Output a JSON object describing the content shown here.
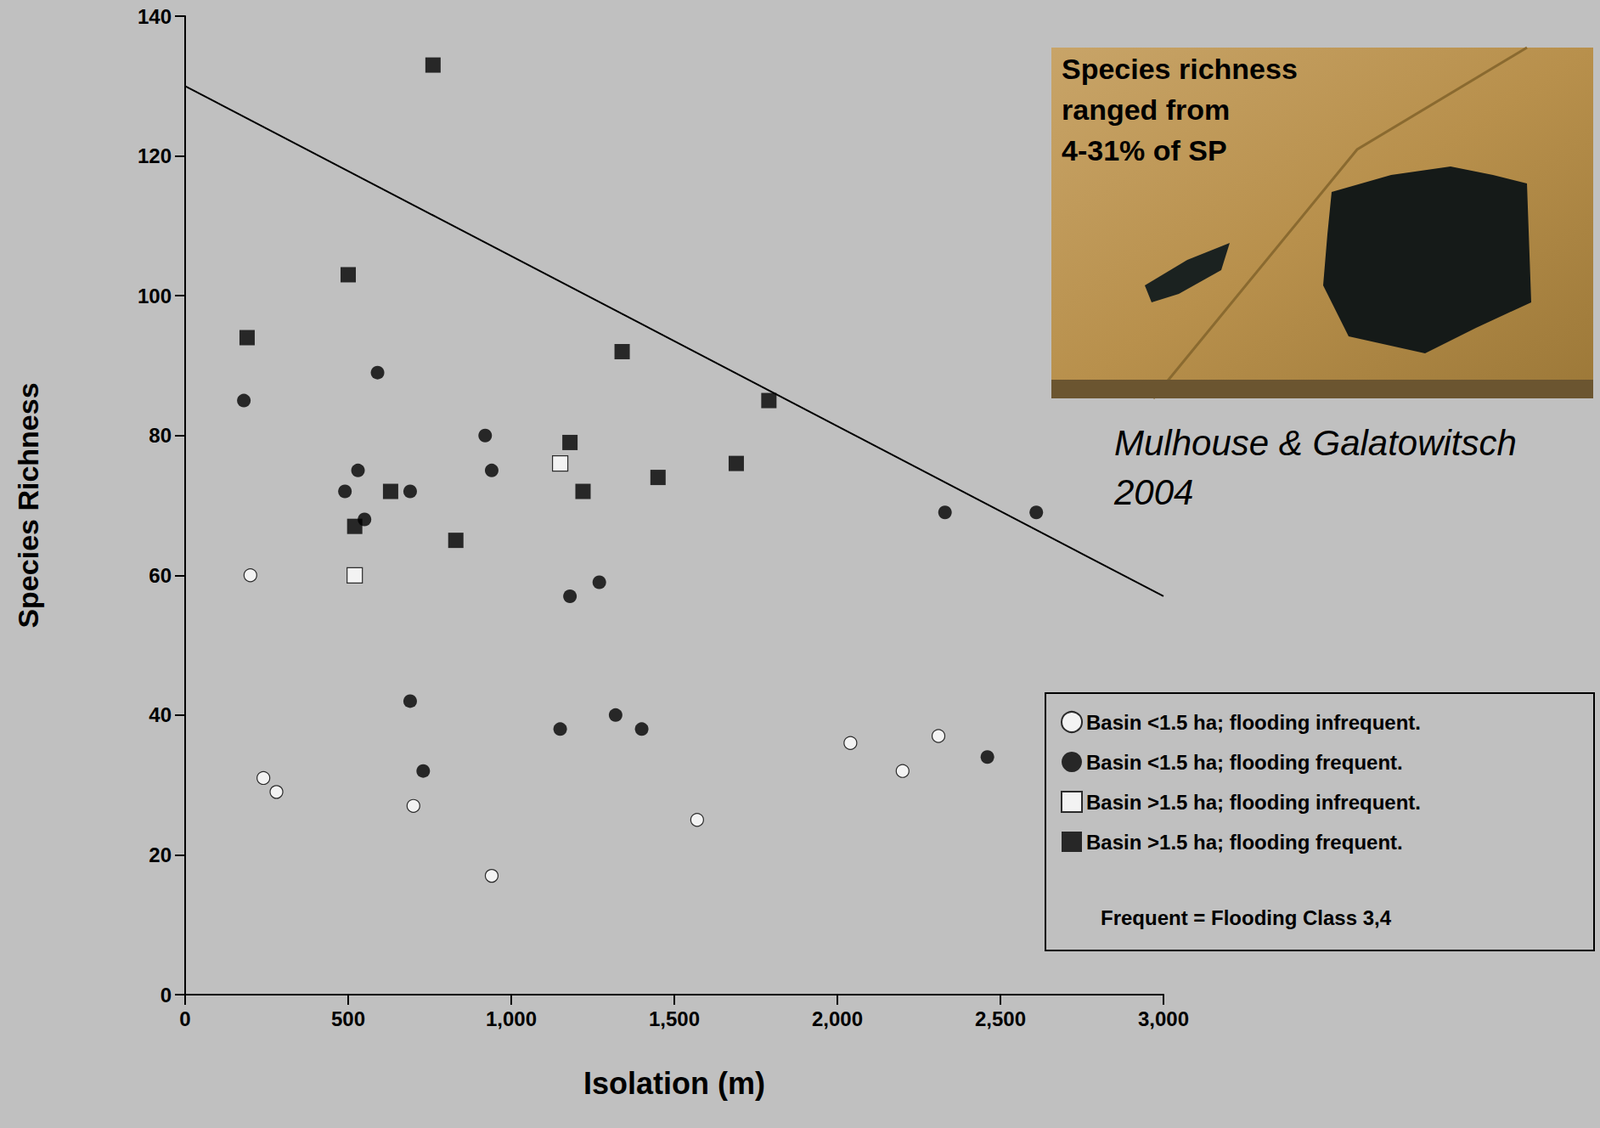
{
  "chart_data": {
    "type": "scatter",
    "x_label": "Isolation (m)",
    "y_label": "Species Richness",
    "xlim": [
      0,
      3000
    ],
    "xticks": [
      0,
      500,
      1000,
      1500,
      2000,
      2500,
      3000
    ],
    "ylim": [
      0,
      140
    ],
    "yticks": [
      0,
      20,
      40,
      60,
      80,
      100,
      120,
      140
    ],
    "grid": false,
    "legend": "right",
    "series": [
      {
        "name": "Basin <1.5 ha; flooding infrequent.",
        "marker": "circle",
        "color": "#ffffff",
        "x": [
          200,
          240,
          280,
          700,
          940,
          1570,
          2040,
          2200,
          2310
        ],
        "values": [
          60,
          31,
          29,
          27,
          17,
          25,
          36,
          32,
          37
        ]
      },
      {
        "name": "Basin <1.5 ha; flooding frequent.",
        "marker": "circle",
        "color": "#000000",
        "x": [
          180,
          590,
          920,
          940,
          530,
          490,
          690,
          550,
          1270,
          1180,
          2330,
          2610,
          690,
          1150,
          1320,
          1400,
          730,
          2460
        ],
        "values": [
          85,
          89,
          80,
          75,
          75,
          72,
          72,
          68,
          59,
          57,
          69,
          69,
          42,
          38,
          40,
          38,
          32,
          34
        ]
      },
      {
        "name": "Basin >1.5 ha; flooding infrequent.",
        "marker": "square",
        "color": "#ffffff",
        "x": [
          1150,
          520
        ],
        "values": [
          76,
          60
        ]
      },
      {
        "name": "Basin >1.5 ha; flooding frequent.",
        "marker": "square",
        "color": "#000000",
        "x": [
          760,
          500,
          190,
          1340,
          1790,
          1180,
          1690,
          1450,
          630,
          1220,
          520,
          830
        ],
        "values": [
          133,
          103,
          94,
          92,
          85,
          79,
          76,
          74,
          72,
          72,
          67,
          65
        ]
      }
    ],
    "trend_line": {
      "x": [
        0,
        3000
      ],
      "values": [
        130,
        57
      ],
      "color": "#000000"
    },
    "legend_note": "Frequent = Flooding Class 3,4",
    "inset_text": [
      "Species richness",
      "ranged from",
      "4-31% of SP"
    ],
    "citation": [
      "Mulhouse & Galatowitsch",
      "2004"
    ]
  }
}
